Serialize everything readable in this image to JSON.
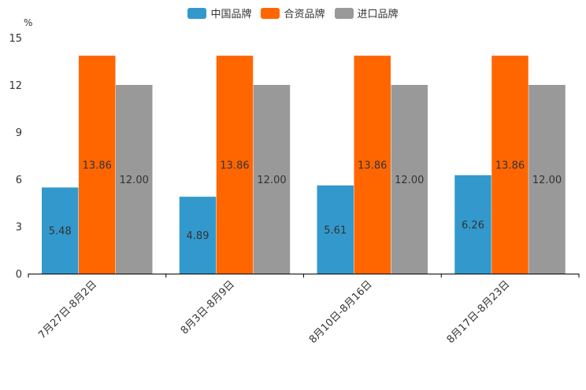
{
  "chart_data": {
    "type": "bar",
    "unit": "%",
    "categories": [
      "7月27日-8月2日",
      "8月3日-8月9日",
      "8月10日-8月16日",
      "8月17日-8月23日"
    ],
    "series": [
      {
        "name": "中国品牌",
        "color": "#3399cc",
        "values": [
          5.48,
          4.89,
          5.61,
          6.26
        ],
        "labels": [
          "5.48",
          "4.89",
          "5.61",
          "6.26"
        ]
      },
      {
        "name": "合资品牌",
        "color": "#ff6600",
        "values": [
          13.86,
          13.86,
          13.86,
          13.86
        ],
        "labels": [
          "13.86",
          "13.86",
          "13.86",
          "13.86"
        ]
      },
      {
        "name": "进口品牌",
        "color": "#999999",
        "values": [
          12.0,
          12.0,
          12.0,
          12.0
        ],
        "labels": [
          "12.00",
          "12.00",
          "12.00",
          "12.00"
        ]
      }
    ],
    "yticks": [
      "0",
      "3",
      "6",
      "9",
      "12",
      "15"
    ],
    "ylim": [
      0,
      15
    ],
    "legend_position": "top-center"
  }
}
